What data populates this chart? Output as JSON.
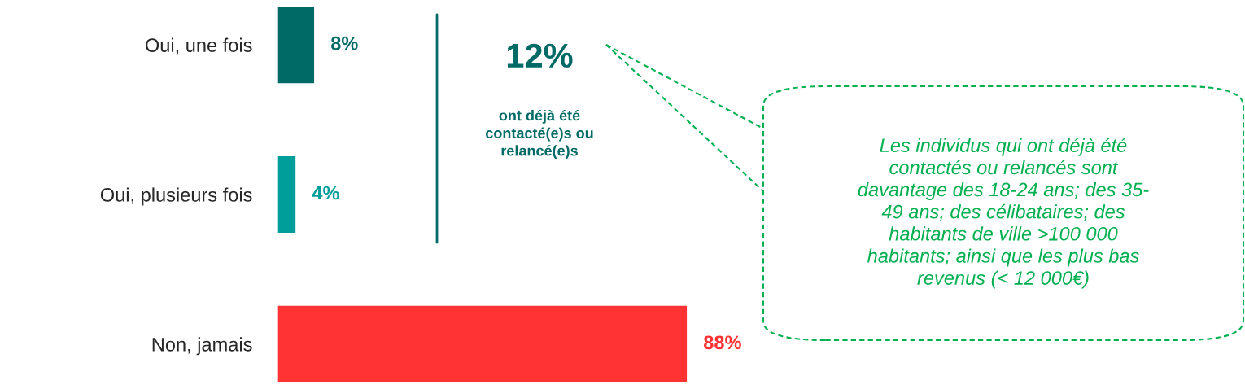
{
  "chart_data": {
    "type": "bar",
    "orientation": "horizontal",
    "categories": [
      "Oui, une fois",
      "Oui, plusieurs fois",
      "Non, jamais"
    ],
    "values": [
      8,
      4,
      88
    ],
    "colors": [
      "#006b66",
      "#009e9a",
      "#ff3333"
    ],
    "value_labels": [
      "8%",
      "4%",
      "88%"
    ],
    "annotations": [
      "12%",
      "ont déjà été\ncontacté(e)s ou\nrelancé(e)s",
      "Les individus qui ont déjà été\ncontactés ou relancés sont\ndavantage des 18-24 ans; des 35-\n49 ans; des célibataires; des\nhabitants de ville >100 000\nhabitants; ainsi que les plus bas\nrevenus (< 12 000€)"
    ],
    "grid": false,
    "legend": false
  }
}
